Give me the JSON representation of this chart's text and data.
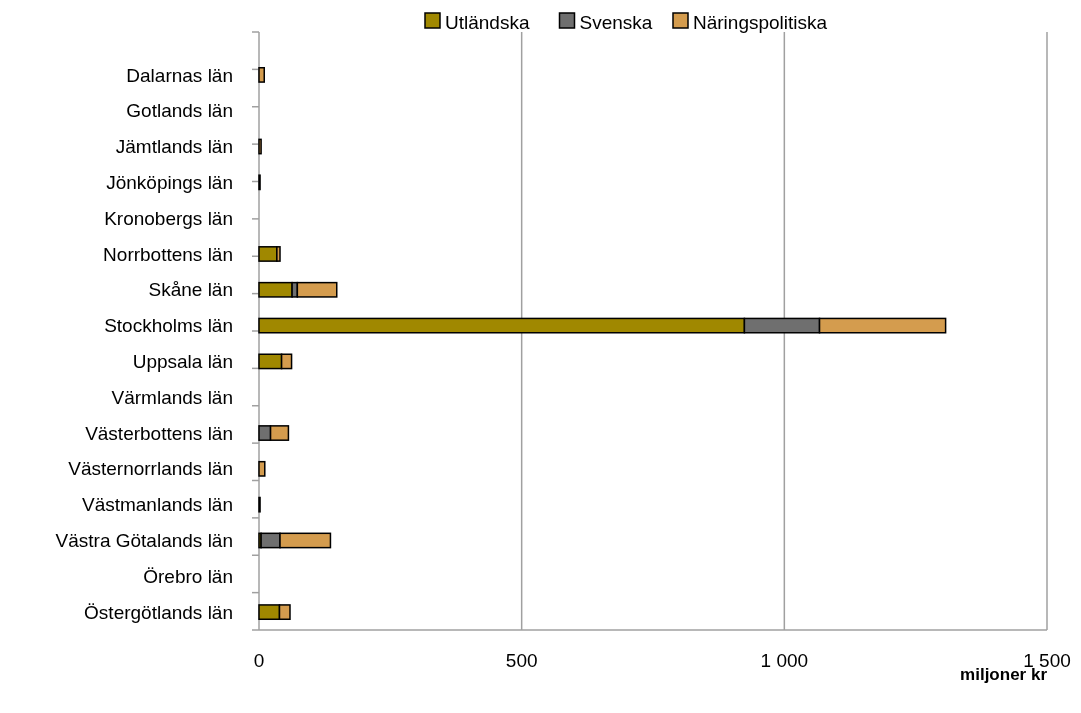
{
  "chart_data": {
    "type": "bar",
    "orientation": "horizontal",
    "stacked": true,
    "xlabel": "miljoner kr",
    "categories": [
      "Dalarnas län",
      "Gotlands län",
      "Jämtlands län",
      "Jönköpings län",
      "Kronobergs län",
      "Norrbottens län",
      "Skåne län",
      "Stockholms län",
      "Uppsala län",
      "Värmlands län",
      "Västerbottens län",
      "Västernorrlands län",
      "Västmanlands län",
      "Västra Götalands län",
      "Örebro län",
      "Östergötlands län"
    ],
    "series": [
      {
        "name": "Utländska",
        "color": "#a08800",
        "values": [
          0,
          0,
          0,
          2,
          0,
          34,
          63,
          924,
          43,
          0,
          0,
          0,
          2,
          4,
          0,
          39
        ]
      },
      {
        "name": "Svenska",
        "color": "#6f6f6f",
        "values": [
          0,
          0,
          0,
          0,
          0,
          0,
          10,
          143,
          0,
          0,
          22,
          0,
          0,
          36,
          0,
          0
        ]
      },
      {
        "name": "Näringspolitiska",
        "color": "#d49c4e",
        "values": [
          10,
          0,
          4,
          0,
          0,
          6,
          75,
          240,
          19,
          0,
          34,
          11,
          0,
          96,
          0,
          20
        ]
      }
    ],
    "xlim": [
      0,
      1500
    ],
    "xticks": [
      0,
      500,
      {
        "value": 1000,
        "label": "1 000"
      },
      {
        "value": 1500,
        "label": "1 500"
      }
    ],
    "grid": "x",
    "legend": "top"
  }
}
